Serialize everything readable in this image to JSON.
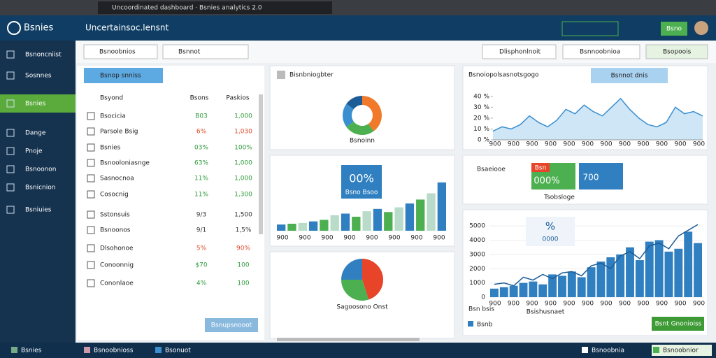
{
  "browser": {
    "tab_title": "Uncoordinated dashboard · Bsnies analytics 2.0"
  },
  "header": {
    "logo": "Bsnies",
    "title": "Uncertainsoc.lensnt",
    "button": "Bsno"
  },
  "sidebar": {
    "items": [
      "Bsnoncniist",
      "Sosnnes",
      "Bsnies",
      "Dange",
      "Pnoje",
      "Bsnoonon",
      "Bsnicnion",
      "Bsniuies"
    ],
    "active": 2
  },
  "toolbar": {
    "left": [
      "Bsnoobnios",
      "Bsnnot"
    ],
    "right": [
      "Dlisphonlnoit",
      "Bsnnoobnioa",
      "Bsopoois"
    ]
  },
  "table": {
    "button": "Bsnop snniss",
    "columns": [
      "Bsyond",
      "Bsons",
      "Paskios"
    ],
    "rows": [
      [
        "Bsocicia",
        "B03",
        "1,000",
        "green"
      ],
      [
        "Parsole Bsig",
        "6%",
        "1,030",
        "red"
      ],
      [
        "Bsnies",
        "03%",
        "100%",
        "green"
      ],
      [
        "Bsnooloniasnge",
        "63%",
        "1,000",
        "green"
      ],
      [
        "Sasnocnoa",
        "11%",
        "1,000",
        "green"
      ],
      [
        "Cosocnig",
        "11%",
        "1,300",
        "green"
      ],
      [
        "Sstonsuis",
        "9/3",
        "1,500",
        "dark"
      ],
      [
        "Bsnoonos",
        "9/1",
        "1,5%",
        "dark"
      ],
      [
        "Dlsohonoe",
        "5%",
        "90%",
        "red"
      ],
      [
        "Conoonnig",
        "$70",
        "100",
        "green"
      ],
      [
        "Cononlaoe",
        "4%",
        "100",
        "green"
      ]
    ],
    "footer_button": "Bsnupsnooot"
  },
  "donut": {
    "title": "Bisnbniogbter",
    "label": "Bsnoinn",
    "values": [
      40,
      25,
      20,
      15
    ],
    "colors": [
      "#f07a2a",
      "#4caf50",
      "#3a8fd0",
      "#1c5c96"
    ]
  },
  "bar_card": {
    "badge": "00%",
    "badge_sub": "Bsno Bsoo",
    "x_labels": [
      "900",
      "900",
      "900",
      "900",
      "900",
      "900",
      "900",
      "900"
    ],
    "values": [
      8,
      9,
      10,
      12,
      14,
      20,
      22,
      18,
      25,
      28,
      24,
      30,
      35,
      40,
      48,
      62
    ],
    "ylim": [
      0,
      70
    ],
    "colors": [
      "#2f7fc1",
      "#4caf50",
      "#b9dbc9"
    ]
  },
  "pie": {
    "label": "Sagoosono Onst",
    "values": [
      45,
      30,
      25
    ],
    "colors": [
      "#e8442a",
      "#4caf50",
      "#2f7fc1"
    ]
  },
  "area": {
    "title": "Bsnoiopolsasnotsgogo",
    "button": "Bsnnot dnis",
    "yticks": [
      {
        "value": 40,
        "label": "40 %"
      },
      {
        "value": 30,
        "label": "30 %"
      },
      {
        "value": 20,
        "label": "20 %"
      },
      {
        "value": 10,
        "label": "10 %"
      },
      {
        "value": 0,
        "label": "0 %"
      }
    ],
    "ylim": [
      0,
      45
    ],
    "x_labels": [
      "900",
      "900",
      "900",
      "900",
      "900",
      "900",
      "900",
      "900",
      "900",
      "900",
      "900",
      "900"
    ],
    "values": [
      8,
      12,
      10,
      14,
      22,
      16,
      12,
      18,
      28,
      24,
      32,
      26,
      22,
      30,
      38,
      28,
      20,
      14,
      12,
      16,
      30,
      24,
      26,
      22
    ],
    "color": "#3a8fd0"
  },
  "kpi": {
    "title": "Bsaeiooe",
    "tag": "Bsn",
    "value1": "000%",
    "value2": "700",
    "sub": "Tsobsloge"
  },
  "bars": {
    "yticks": [
      0,
      1000,
      2000,
      3000,
      4000,
      5000
    ],
    "ylim": [
      0,
      5500
    ],
    "values": [
      600,
      700,
      800,
      1000,
      1100,
      900,
      1600,
      1500,
      1800,
      1400,
      2100,
      2500,
      2800,
      3000,
      3500,
      2600,
      3900,
      4000,
      3200,
      3400,
      4600,
      3800
    ],
    "line": [
      900,
      1000,
      800,
      1400,
      1200,
      1600,
      1300,
      1700,
      1800,
      1500,
      2200,
      2400,
      2000,
      2900,
      3200,
      2700,
      3600,
      3800,
      3400,
      4300,
      4700,
      5100
    ],
    "color": "#2f7fc1",
    "line_color": "#1c5c96",
    "badge": "%",
    "badge_value": "0000",
    "x_labels": [
      "900",
      "900",
      "900",
      "900",
      "900",
      "900",
      "900",
      "900",
      "900",
      "900",
      "900",
      "900"
    ],
    "axis_title": "Bsishusnaet",
    "corner": "Bsn bsis",
    "legend": "Bsnb",
    "button": "Bsnt Gnonioiss"
  },
  "footer": {
    "items": [
      "Bsnies",
      "Bsnoobnioss",
      "Bsonuot",
      "Bsnoobnia",
      "Bsnoobnior"
    ]
  }
}
